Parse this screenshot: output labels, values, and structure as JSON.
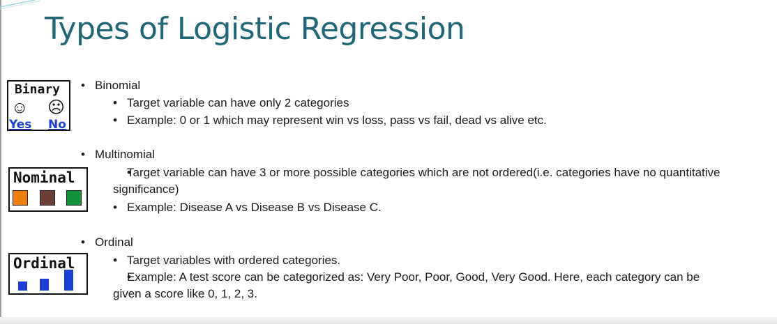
{
  "slide": {
    "title": "Types of Logistic Regression",
    "sections": [
      {
        "heading": "Binomial",
        "icon": {
          "label": "Binary",
          "faces": [
            "smiley-face-icon",
            "sad-face-icon"
          ],
          "yes": "Yes",
          "no": "No"
        },
        "points": [
          "Target variable can have only 2 categories",
          "Example: 0 or 1 which may represent win vs loss, pass vs fail, dead vs alive etc."
        ]
      },
      {
        "heading": "Multinomial",
        "icon": {
          "label": "Nominal",
          "swatch_colors": [
            "#f07f12",
            "#6a3e35",
            "#12933a"
          ]
        },
        "points": [
          "Target variable can have 3 or more possible categories which are not ordered(i.e. categories have no quantitative significance)",
          "Example: Disease A vs  Disease B vs Disease C."
        ]
      },
      {
        "heading": "Ordinal",
        "icon": {
          "label": "Ordinal",
          "bar_color": "#1c3fd1"
        },
        "points": [
          "Target variables with ordered categories.",
          "Example: A test score can be categorized as: Very Poor, Poor, Good, Very Good. Here, each category can be given a score like 0, 1, 2, 3."
        ]
      }
    ]
  }
}
